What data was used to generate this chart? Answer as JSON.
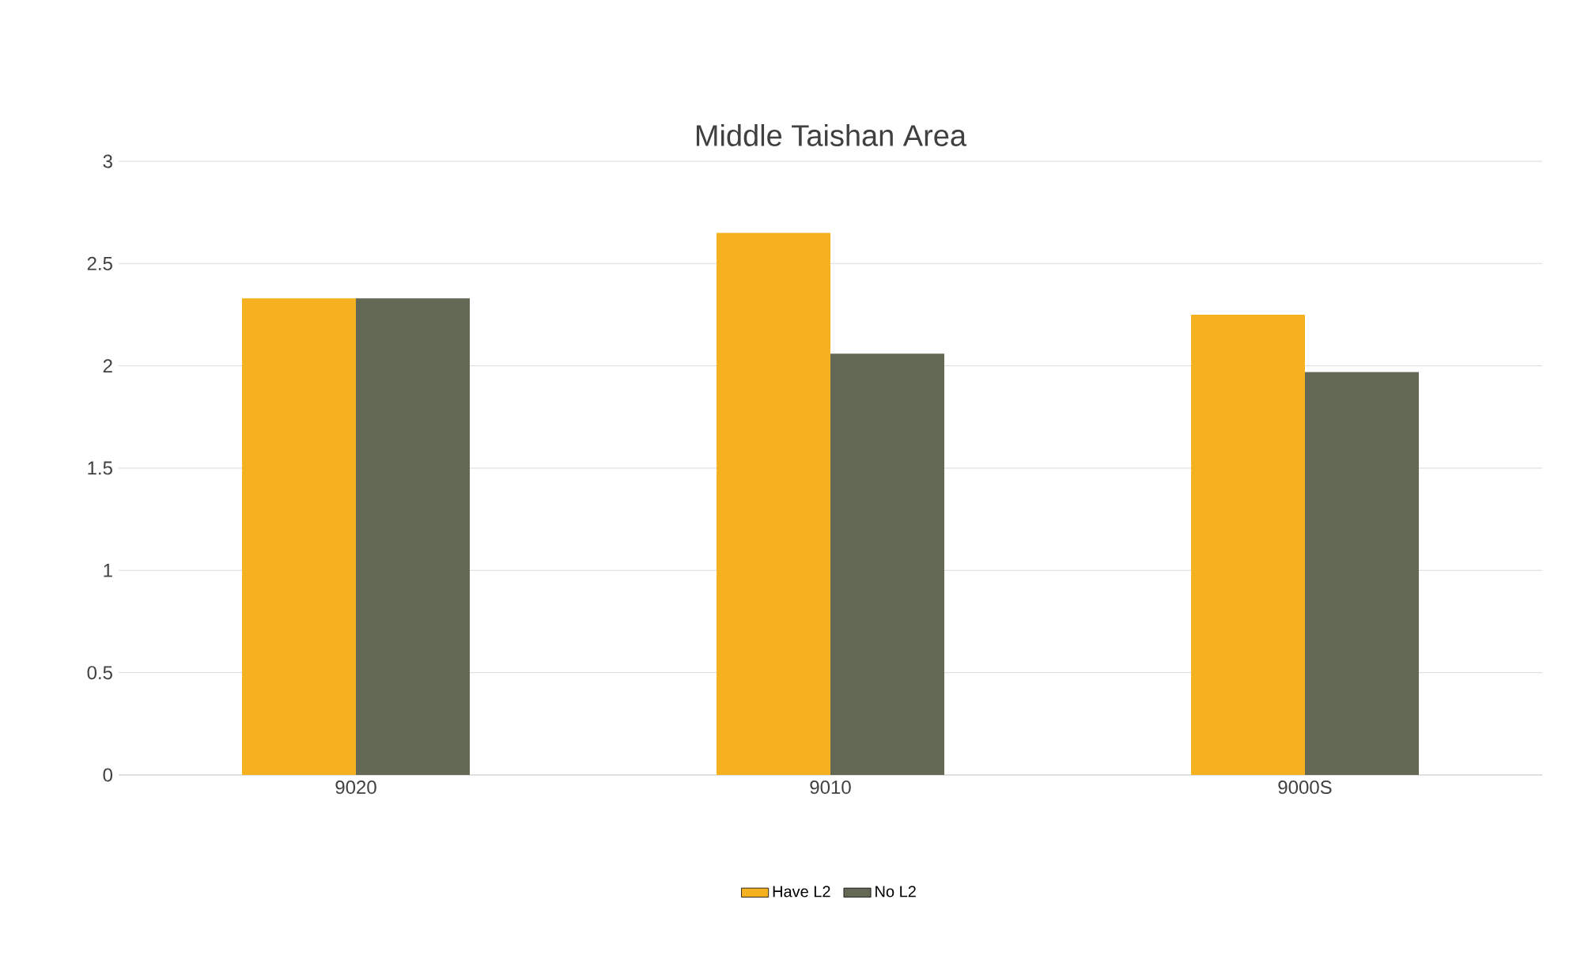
{
  "chart_data": {
    "type": "bar",
    "title": "Middle Taishan Area",
    "categories": [
      "9020",
      "9010",
      "9000S"
    ],
    "series": [
      {
        "name": "Have L2",
        "color": "#f5b120",
        "values": [
          2.33,
          2.65,
          2.25
        ]
      },
      {
        "name": "No L2",
        "color": "#636955",
        "values": [
          2.33,
          2.06,
          1.97
        ]
      }
    ],
    "ylim": [
      0,
      3
    ],
    "yticks": [
      0,
      0.5,
      1,
      1.5,
      2,
      2.5,
      3
    ],
    "grid": "y",
    "legend": "bottom"
  }
}
